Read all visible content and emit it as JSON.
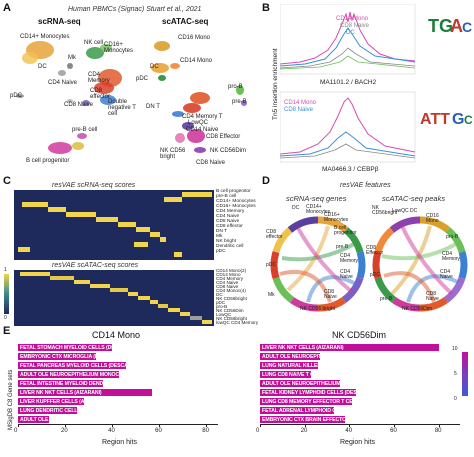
{
  "panel_letters": {
    "a": "A",
    "b": "B",
    "c": "C",
    "d": "D",
    "e": "E"
  },
  "panel_a": {
    "header": "Human PBMCs (Signac) Stuart et al., 2021",
    "left_title": "scRNA-seq",
    "right_title": "scATAC-seq",
    "rna_labels": [
      "CD14+ Monocytes",
      "NK cell",
      "CD16+ Monocytes",
      "Mk",
      "DC",
      "CD4 Memory",
      "CD4 Naive",
      "CD8 effector",
      "Double negative T cell",
      "CD8 Naive",
      "pDC",
      "pre-B cell",
      "B cell progenitor"
    ],
    "atac_labels": [
      "CD16 Mono",
      "CD14 Mono",
      "DC",
      "pDC",
      "pro-B",
      "pre-B",
      "CD4 Memory T",
      "LowQC",
      "DN T",
      "CD14 Naive",
      "CD8 Effector",
      "NK CD56Dim",
      "NK CD56 bright",
      "CD8 Naive"
    ]
  },
  "panel_b": {
    "ylabel": "Tn5 insertion enrichment",
    "top": {
      "motif": "MA1101.2 / BACH2",
      "legend": [
        "CD14 Mono",
        "CD8 Naive",
        "DC"
      ]
    },
    "bottom": {
      "motif": "MA0466.3 / CEBPβ",
      "legend": [
        "CD14 Mono",
        "CD8 Naive"
      ]
    }
  },
  "panel_c": {
    "title_rna": "resVAE scRNA-seq scores",
    "title_atac": "resVAE scATAC-seq scores",
    "rna_rows": [
      "B cell progenitor",
      "pre-B cell",
      "CD14+ Monocytes",
      "CD16+ Monocytes",
      "CD4 Memory",
      "CD4 Naive",
      "CD8 Naive",
      "CD8 effector",
      "DN T",
      "Mk",
      "NK bright",
      "Dendritic cell",
      "pDC"
    ],
    "atac_rows": [
      "CD14 Mono(2)",
      "CD14 Mono",
      "CD4 Memory",
      "CD4 Naive",
      "CD8 Naive",
      "CD4 Monoc(4)",
      "DC",
      "NK CD56bright",
      "pDC",
      "pro-B",
      "NK CD56Dim",
      "LowQC",
      "NK CD56bright",
      "lowQC CD4 Memory"
    ],
    "colorbar": {
      "max": "1",
      "min": "0"
    }
  },
  "panel_d": {
    "title": "resVAE features",
    "left_title": "scRNA-seq genes",
    "right_title": "scATAC-seq peaks",
    "left_labels": [
      "DC",
      "CD14+ Monocytes",
      "CD16+ Monocytes",
      "B cell progenitor",
      "pre-B",
      "CD4 Memory",
      "CD4 Naive",
      "CD8 Naive",
      "NK CD56 bright",
      "Mk",
      "pDC",
      "CD8 effector"
    ],
    "right_labels": [
      "NK CD56bright",
      "LowQC",
      "DC",
      "CD16 Mono",
      "pro-B",
      "CD4 Memory",
      "CD4 Naive",
      "CD8 Naive",
      "NK CD56Dim",
      "pre-B",
      "pDC",
      "CD8 Effector"
    ]
  },
  "panel_e": {
    "ylabel": "MSigDB C8 Gene sets",
    "xlabel": "Region hits",
    "colorbar": {
      "max": "10",
      "mid": "5",
      "min": "0"
    },
    "colors": {
      "bar": "#c20f9a"
    },
    "left": {
      "title": "CD14 Mono",
      "ticks": [
        "0",
        "20",
        "40",
        "60",
        "80"
      ],
      "xmax": 85,
      "bars": [
        {
          "label": "FETAL STOMACH MYELOID CELLS (DESCARTES)",
          "value": 40
        },
        {
          "label": "EMBRYONIC CTX MICROGLIA (FAN)",
          "value": 33
        },
        {
          "label": "FETAL PANCREAS MYELOID CELLS (DESCARTES)",
          "value": 46
        },
        {
          "label": "ADULT OLE NEUROEPITHELIUM MONOCYTES (DURANTE)",
          "value": 43
        },
        {
          "label": "FETAL INTESTINE MYELOID DENDRITIC CELLS (DESCARTES)",
          "value": 36
        },
        {
          "label": "LIVER NK NKT CELLS (AIZARANI)",
          "value": 57
        },
        {
          "label": "LIVER KUPFFER CELLS (AIZARANI)",
          "value": 28
        },
        {
          "label": "LUNG DENDRITIC CELL (TRAVAGLINI)",
          "value": 25
        },
        {
          "label": "ADULT OLE NEUROEPITHELIUM MAST CELLS (DURANTE)",
          "value": 13
        }
      ]
    },
    "right": {
      "title": "NK CD56Dim",
      "ticks": [
        "0",
        "20",
        "40",
        "60",
        "80"
      ],
      "xmax": 85,
      "bars": [
        {
          "label": "LIVER NK NKT CELLS (AIZARANI)",
          "value": 80
        },
        {
          "label": "ADULT OLE NEUROEPITHELIUM CD8 T CELLS (DURANTE)",
          "value": 27
        },
        {
          "label": "LUNG NATURAL KILLER CELL (TRAVAGLINI)",
          "value": 26
        },
        {
          "label": "LUNG CD8 NAIVE T CELL (TRAVAGLINI)",
          "value": 23
        },
        {
          "label": "ADULT OLE NEUROEPITHELIUM NK CELLS (DURANTE)",
          "value": 36
        },
        {
          "label": "FETAL KIDNEY LYMPHOID CELLS (DESCARTES)",
          "value": 43
        },
        {
          "label": "LUNG CD8 MEMORY EFFECTOR T CELL (TRAVAGLINI)",
          "value": 41
        },
        {
          "label": "FETAL ADRENAL LYMPHOID CELLS (DESCARTES)",
          "value": 33
        },
        {
          "label": "EMBRYONIC CTX BRAIN EFFECTOR T CELL (FAN)",
          "value": 38
        }
      ]
    }
  }
}
